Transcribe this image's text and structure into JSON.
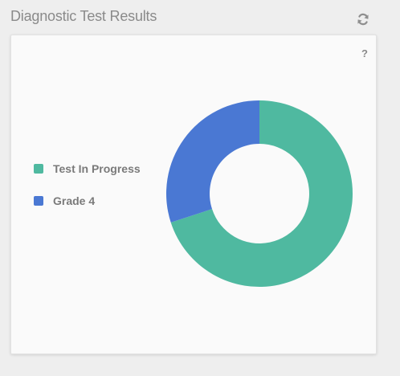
{
  "widget": {
    "title": "Diagnostic Test Results",
    "refresh_icon": "refresh-icon",
    "help_label": "?"
  },
  "chart_data": {
    "type": "pie",
    "donut": true,
    "categories": [
      "Test In Progress",
      "Grade 4"
    ],
    "values": [
      70,
      30
    ],
    "colors": [
      "#4fb9a0",
      "#4a78d3"
    ],
    "title": "",
    "legend_position": "left"
  }
}
